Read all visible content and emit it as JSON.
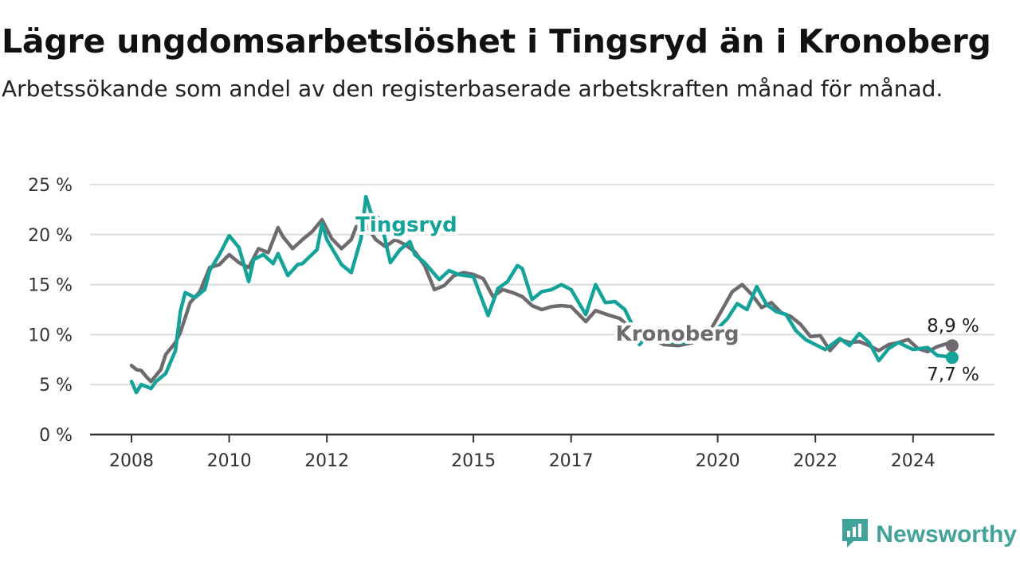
{
  "title": "Lägre ungdomsarbetslöshet i Tingsryd än i Kronoberg",
  "subtitle": "Arbetssökande som andel av den registerbaserade arbetskraften månad för månad.",
  "brand": {
    "name": "Newsworthy",
    "icon": "newsworthy-chart-icon"
  },
  "colors": {
    "tingsryd": "#13a398",
    "kronoberg": "#6f6a70",
    "grid": "#dddddd",
    "axis": "#333333"
  },
  "chart_data": {
    "type": "line",
    "title": "Lägre ungdomsarbetslöshet i Tingsryd än i Kronoberg",
    "xlabel": "",
    "ylabel": "",
    "xlim": [
      2008,
      2025.5
    ],
    "ylim": [
      0,
      25
    ],
    "x_ticks": [
      2008,
      2010,
      2012,
      2015,
      2017,
      2020,
      2022,
      2024
    ],
    "x_tick_labels": [
      "2008",
      "2010",
      "2012",
      "2015",
      "2017",
      "2020",
      "2022",
      "2024"
    ],
    "y_ticks": [
      0,
      5,
      10,
      15,
      20,
      25
    ],
    "y_tick_labels": [
      "0 %",
      "5 %",
      "10 %",
      "15 %",
      "20 %",
      "25 %"
    ],
    "grid": true,
    "series": [
      {
        "name": "Tingsryd",
        "color": "#13a398",
        "x": [
          2008.0,
          2008.1,
          2008.2,
          2008.4,
          2008.5,
          2008.7,
          2008.9,
          2009.0,
          2009.1,
          2009.3,
          2009.5,
          2009.6,
          2009.8,
          2010.0,
          2010.2,
          2010.4,
          2010.5,
          2010.7,
          2010.9,
          2011.0,
          2011.2,
          2011.4,
          2011.5,
          2011.8,
          2011.9,
          2012.0,
          2012.3,
          2012.5,
          2012.7,
          2012.8,
          2012.9,
          2013.1,
          2013.3,
          2013.5,
          2013.7,
          2013.8,
          2014.0,
          2014.3,
          2014.5,
          2014.7,
          2015.0,
          2015.3,
          2015.5,
          2015.7,
          2015.9,
          2016.0,
          2016.2,
          2016.4,
          2016.6,
          2016.8,
          2017.0,
          2017.3,
          2017.5,
          2017.7,
          2017.9,
          2018.1,
          2018.3,
          2018.4,
          2018.6,
          2018.8,
          2019.0,
          2019.2,
          2019.4,
          2019.6,
          2019.8,
          2020.0,
          2020.2,
          2020.4,
          2020.6,
          2020.8,
          2021.0,
          2021.2,
          2021.4,
          2021.6,
          2021.8,
          2022.0,
          2022.2,
          2022.5,
          2022.7,
          2022.9,
          2023.1,
          2023.3,
          2023.5,
          2023.7,
          2024.0,
          2024.3,
          2024.5,
          2024.7,
          2024.8
        ],
        "values": [
          5.3,
          4.2,
          5.0,
          4.6,
          5.3,
          6.1,
          8.4,
          12.3,
          14.2,
          13.7,
          14.5,
          16.4,
          18.0,
          19.9,
          18.7,
          15.3,
          17.5,
          18.0,
          17.1,
          18.1,
          15.9,
          17.0,
          17.1,
          18.5,
          21.1,
          19.5,
          17.0,
          16.2,
          19.6,
          23.8,
          22.2,
          21.5,
          17.2,
          18.5,
          19.3,
          18.0,
          17.2,
          15.5,
          16.4,
          16.0,
          15.8,
          11.9,
          14.6,
          15.3,
          16.9,
          16.6,
          13.5,
          14.3,
          14.5,
          15.0,
          14.5,
          12.0,
          15.0,
          13.2,
          13.3,
          12.5,
          10.5,
          9.0,
          10.1,
          10.4,
          9.3,
          9.2,
          9.2,
          9.6,
          10.2,
          10.6,
          11.6,
          13.1,
          12.5,
          14.8,
          13.0,
          12.3,
          12.0,
          10.4,
          9.5,
          9.0,
          8.5,
          9.6,
          8.9,
          10.1,
          9.2,
          7.4,
          8.6,
          9.2,
          8.5,
          8.7,
          7.9,
          7.8,
          7.7
        ]
      },
      {
        "name": "Kronoberg",
        "color": "#6f6a70",
        "x": [
          2008.0,
          2008.1,
          2008.2,
          2008.3,
          2008.4,
          2008.6,
          2008.7,
          2008.9,
          2009.0,
          2009.2,
          2009.4,
          2009.6,
          2009.8,
          2010.0,
          2010.2,
          2010.4,
          2010.6,
          2010.8,
          2011.0,
          2011.1,
          2011.3,
          2011.5,
          2011.7,
          2011.9,
          2012.1,
          2012.3,
          2012.5,
          2012.6,
          2012.8,
          2013.0,
          2013.2,
          2013.4,
          2013.6,
          2013.8,
          2014.0,
          2014.2,
          2014.4,
          2014.6,
          2014.8,
          2015.0,
          2015.2,
          2015.4,
          2015.6,
          2015.8,
          2016.0,
          2016.2,
          2016.4,
          2016.6,
          2016.8,
          2017.0,
          2017.3,
          2017.5,
          2017.8,
          2018.0,
          2018.3,
          2018.6,
          2018.9,
          2019.2,
          2019.5,
          2019.8,
          2020.0,
          2020.3,
          2020.5,
          2020.7,
          2020.9,
          2021.1,
          2021.3,
          2021.5,
          2021.7,
          2021.9,
          2022.1,
          2022.3,
          2022.5,
          2022.7,
          2022.9,
          2023.1,
          2023.3,
          2023.5,
          2023.7,
          2023.9,
          2024.1,
          2024.3,
          2024.5,
          2024.7,
          2024.8
        ],
        "values": [
          6.9,
          6.5,
          6.4,
          5.8,
          5.3,
          6.5,
          8.0,
          9.2,
          10.2,
          13.2,
          14.3,
          16.7,
          17.0,
          18.0,
          17.2,
          16.7,
          18.6,
          18.2,
          20.7,
          19.8,
          18.6,
          19.5,
          20.3,
          21.5,
          19.6,
          18.6,
          19.5,
          20.8,
          21.0,
          19.5,
          18.8,
          19.5,
          19.0,
          18.3,
          16.9,
          14.5,
          14.9,
          15.9,
          16.2,
          16.0,
          15.6,
          13.8,
          14.5,
          14.2,
          13.8,
          12.9,
          12.5,
          12.8,
          12.9,
          12.8,
          11.3,
          12.4,
          11.9,
          11.6,
          10.3,
          9.7,
          9.0,
          8.9,
          9.2,
          10.0,
          11.7,
          14.3,
          15.0,
          14.0,
          12.7,
          13.2,
          12.2,
          11.8,
          11.0,
          9.8,
          9.9,
          8.4,
          9.5,
          9.2,
          9.3,
          8.9,
          8.4,
          9.0,
          9.2,
          9.5,
          8.6,
          8.3,
          8.8,
          9.1,
          8.9
        ]
      }
    ],
    "series_labels": {
      "tingsryd": "Tingsryd",
      "kronoberg": "Kronoberg"
    },
    "end_labels": {
      "kronoberg": "8,9 %",
      "tingsryd": "7,7 %"
    }
  }
}
